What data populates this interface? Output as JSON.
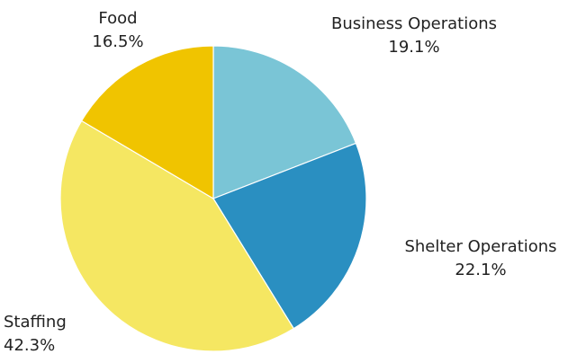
{
  "chart_data": {
    "type": "pie",
    "title": "",
    "slices": [
      {
        "label": "Business Operations",
        "value": 19.1,
        "value_text": "19.1%",
        "color": "#7ac5d6"
      },
      {
        "label": "Shelter Operations",
        "value": 22.1,
        "value_text": "22.1%",
        "color": "#2a8fc1"
      },
      {
        "label": "Staffing",
        "value": 42.3,
        "value_text": "42.3%",
        "color": "#f5e762"
      },
      {
        "label": "Food",
        "value": 16.5,
        "value_text": "16.5%",
        "color": "#f0c400"
      }
    ],
    "start_angle": "12 o'clock",
    "direction": "clockwise",
    "legend": "none"
  }
}
